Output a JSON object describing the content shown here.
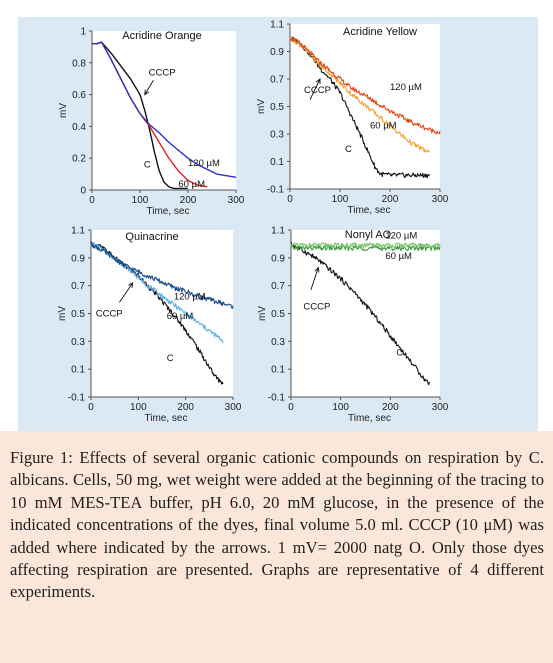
{
  "figure": {
    "caption_label": "Figure 1:",
    "caption_text": "Effects of several organic cationic compounds on respiration by C. albicans. Cells, 50 mg, wet weight were added at the beginning of the tracing to 10 mM MES-TEA buffer, pH 6.0, 20 mM glucose, in the presence of the indicated concentrations of the dyes, final volume 5.0 ml. CCCP (10 μM) was added where indicated by the arrows. 1 mV= 2000 natg O. Only those dyes affecting respiration are presented. Graphs are representative of 4 different experiments."
  },
  "chart_data": [
    {
      "type": "line",
      "title": "Acridine Orange",
      "xlabel": "Time, sec",
      "ylabel": "mV",
      "xlim": [
        0,
        300
      ],
      "ylim": [
        0,
        1
      ],
      "xticks": [
        "0",
        "100",
        "200",
        "300"
      ],
      "yticks": [
        "0",
        "0.2",
        "0.4",
        "0.6",
        "0.8",
        "1"
      ],
      "series": [
        {
          "name": "C",
          "color": "#111111",
          "x": [
            0,
            10,
            20,
            40,
            60,
            80,
            100,
            110,
            120,
            130,
            140,
            150,
            160,
            170,
            180,
            190,
            200
          ],
          "y": [
            0.92,
            0.92,
            0.93,
            0.86,
            0.78,
            0.7,
            0.6,
            0.5,
            0.38,
            0.24,
            0.12,
            0.05,
            0.02,
            0.01,
            0.01,
            0.01,
            0.01
          ]
        },
        {
          "name": "60 µM",
          "color": "#e02020",
          "x": [
            0,
            10,
            20,
            40,
            60,
            80,
            100,
            120,
            140,
            160,
            180,
            200,
            220,
            240
          ],
          "y": [
            0.92,
            0.92,
            0.93,
            0.82,
            0.7,
            0.58,
            0.48,
            0.4,
            0.3,
            0.2,
            0.12,
            0.06,
            0.03,
            0.02
          ]
        },
        {
          "name": "120 µM",
          "color": "#3030c8",
          "x": [
            0,
            10,
            20,
            40,
            60,
            80,
            100,
            120,
            140,
            160,
            180,
            200,
            220,
            240,
            260,
            280,
            300
          ],
          "y": [
            0.92,
            0.92,
            0.93,
            0.82,
            0.7,
            0.58,
            0.48,
            0.41,
            0.36,
            0.3,
            0.25,
            0.2,
            0.16,
            0.13,
            0.1,
            0.09,
            0.08
          ]
        }
      ],
      "annotations": [
        "CCCP",
        "C",
        "120 µM",
        "60 µM"
      ]
    },
    {
      "type": "line",
      "title": "Acridine Yellow",
      "xlabel": "Time, sec",
      "ylabel": "mV",
      "xlim": [
        0,
        300
      ],
      "ylim": [
        -0.1,
        1.1
      ],
      "xticks": [
        "0",
        "100",
        "200",
        "300"
      ],
      "yticks": [
        "-0.1",
        "0.1",
        "0.3",
        "0.5",
        "0.7",
        "0.9",
        "1.1"
      ],
      "series": [
        {
          "name": "C",
          "color": "#111111",
          "x": [
            0,
            20,
            40,
            60,
            80,
            100,
            120,
            140,
            160,
            170,
            180,
            200,
            220,
            240,
            260,
            280
          ],
          "y": [
            1.0,
            0.96,
            0.88,
            0.78,
            0.7,
            0.6,
            0.45,
            0.3,
            0.14,
            0.06,
            0.01,
            0.0,
            0.0,
            0.0,
            0.0,
            0.0
          ]
        },
        {
          "name": "60 µM",
          "color": "#f2a030",
          "x": [
            0,
            20,
            40,
            60,
            80,
            100,
            120,
            140,
            160,
            180,
            200,
            220,
            240,
            260,
            280
          ],
          "y": [
            1.0,
            0.95,
            0.88,
            0.8,
            0.74,
            0.67,
            0.6,
            0.54,
            0.48,
            0.42,
            0.36,
            0.3,
            0.24,
            0.2,
            0.16
          ]
        },
        {
          "name": "120 µM",
          "color": "#e04818",
          "x": [
            0,
            20,
            40,
            60,
            80,
            100,
            120,
            140,
            160,
            180,
            200,
            220,
            240,
            260,
            280,
            300
          ],
          "y": [
            1.0,
            0.96,
            0.89,
            0.82,
            0.76,
            0.7,
            0.64,
            0.6,
            0.56,
            0.51,
            0.47,
            0.43,
            0.39,
            0.36,
            0.33,
            0.31
          ]
        }
      ],
      "annotations": [
        "CCCP",
        "120 µM",
        "60 µM",
        "C"
      ]
    },
    {
      "type": "line",
      "title": "Quinacrine",
      "xlabel": "Time, sec",
      "ylabel": "mV",
      "xlim": [
        0,
        300
      ],
      "ylim": [
        -0.1,
        1.1
      ],
      "xticks": [
        "0",
        "100",
        "200",
        "300"
      ],
      "yticks": [
        "-0.1",
        "0.1",
        "0.3",
        "0.5",
        "0.7",
        "0.9",
        "1.1"
      ],
      "series": [
        {
          "name": "C",
          "color": "#111111",
          "x": [
            0,
            20,
            40,
            60,
            80,
            100,
            120,
            140,
            160,
            180,
            200,
            220,
            240,
            260,
            270,
            280
          ],
          "y": [
            1.0,
            0.98,
            0.93,
            0.87,
            0.82,
            0.77,
            0.7,
            0.63,
            0.55,
            0.47,
            0.38,
            0.28,
            0.17,
            0.06,
            0.02,
            0.0
          ]
        },
        {
          "name": "60 µM",
          "color": "#5bb0e8",
          "x": [
            0,
            20,
            40,
            60,
            80,
            100,
            120,
            140,
            160,
            180,
            200,
            220,
            240,
            260,
            280
          ],
          "y": [
            1.0,
            0.97,
            0.92,
            0.87,
            0.82,
            0.76,
            0.7,
            0.65,
            0.6,
            0.55,
            0.5,
            0.45,
            0.4,
            0.35,
            0.3
          ]
        },
        {
          "name": "120 µM",
          "color": "#1f4e8c",
          "x": [
            0,
            20,
            40,
            60,
            80,
            100,
            120,
            140,
            160,
            180,
            200,
            220,
            240,
            260,
            280,
            300
          ],
          "y": [
            1.0,
            0.96,
            0.92,
            0.87,
            0.83,
            0.8,
            0.77,
            0.74,
            0.71,
            0.68,
            0.66,
            0.63,
            0.61,
            0.59,
            0.57,
            0.55
          ]
        }
      ],
      "annotations": [
        "120 µM",
        "CCCP",
        "60 µM",
        "C"
      ]
    },
    {
      "type": "line",
      "title": "Nonyl AO",
      "xlabel": "Time, sec",
      "ylabel": "mV",
      "xlim": [
        0,
        300
      ],
      "ylim": [
        -0.1,
        1.1
      ],
      "xticks": [
        "0",
        "100",
        "200",
        "300"
      ],
      "yticks": [
        "-0.1",
        "0.1",
        "0.3",
        "0.5",
        "0.7",
        "0.9",
        "1.1"
      ],
      "series": [
        {
          "name": "C",
          "color": "#111111",
          "x": [
            0,
            20,
            40,
            60,
            80,
            100,
            120,
            140,
            160,
            180,
            200,
            220,
            240,
            260,
            270,
            280
          ],
          "y": [
            1.0,
            0.96,
            0.92,
            0.87,
            0.81,
            0.75,
            0.68,
            0.6,
            0.52,
            0.43,
            0.34,
            0.25,
            0.16,
            0.07,
            0.02,
            0.0
          ]
        },
        {
          "name": "60 µM",
          "color": "#3a9a3a",
          "x": [
            0,
            50,
            100,
            150,
            200,
            250,
            300
          ],
          "y": [
            0.97,
            0.97,
            0.97,
            0.97,
            0.97,
            0.97,
            0.97
          ]
        },
        {
          "name": "120 µM",
          "color": "#7cc46a",
          "x": [
            0,
            50,
            100,
            150,
            200,
            250,
            300
          ],
          "y": [
            0.99,
            0.99,
            0.99,
            0.99,
            0.99,
            0.99,
            0.99
          ]
        }
      ],
      "annotations": [
        "120 µM",
        "60 µM",
        "CCCP",
        "C"
      ]
    }
  ]
}
